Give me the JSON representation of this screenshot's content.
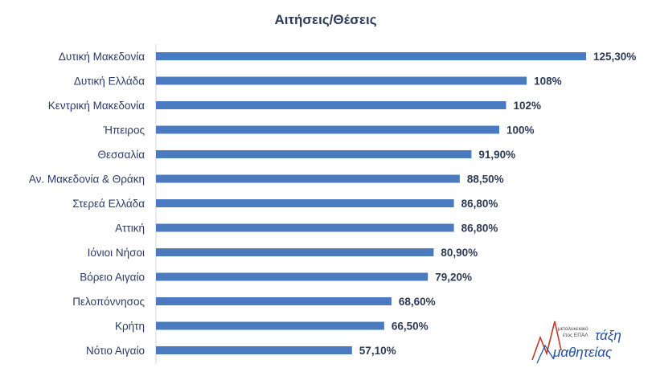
{
  "chart_data": {
    "type": "bar",
    "orientation": "horizontal",
    "title": "Αιτήσεις/Θέσεις",
    "categories": [
      "Δυτική Μακεδονία",
      "Δυτική Ελλάδα",
      "Κεντρική Μακεδονία",
      "Ήπειρος",
      "Θεσσαλία",
      "Αν. Μακεδονία & Θράκη",
      "Στερεά Ελλάδα",
      "Αττική",
      "Ιόνιοι Νήσοι",
      "Βόρειο Αιγαίο",
      "Πελοπόννησος",
      "Κρήτη",
      "Νότιο Αιγαίο"
    ],
    "values": [
      125.3,
      108,
      102,
      100,
      91.9,
      88.5,
      86.8,
      86.8,
      80.9,
      79.2,
      68.6,
      66.5,
      57.1
    ],
    "value_labels": [
      "125,30%",
      "108%",
      "102%",
      "100%",
      "91,90%",
      "88,50%",
      "86,80%",
      "86,80%",
      "80,90%",
      "79,20%",
      "68,60%",
      "66,50%",
      "57,10%"
    ],
    "xlim": [
      0,
      125.3
    ],
    "grid": false,
    "legend": "none",
    "bar_color": "#4a7abf"
  },
  "logo": {
    "small_text_1": "μεταλυκειακό",
    "small_text_2": "έτος ΕΠΑΛ",
    "word_1": "τάξη",
    "word_2": "μαθητείας"
  }
}
